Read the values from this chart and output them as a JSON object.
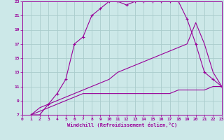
{
  "title": "",
  "xlabel": "Windchill (Refroidissement éolien,°C)",
  "bg_color": "#cce8e8",
  "grid_color": "#aacccc",
  "line_color": "#990099",
  "xlim": [
    0,
    23
  ],
  "ylim": [
    7,
    23
  ],
  "xticks": [
    0,
    1,
    2,
    3,
    4,
    5,
    6,
    7,
    8,
    9,
    10,
    11,
    12,
    13,
    14,
    15,
    16,
    17,
    18,
    19,
    20,
    21,
    22,
    23
  ],
  "yticks": [
    7,
    9,
    11,
    13,
    15,
    17,
    19,
    21,
    23
  ],
  "line1_x": [
    1,
    2,
    3,
    4,
    5,
    6,
    7,
    8,
    9,
    10,
    11,
    12,
    13,
    14,
    15,
    16,
    17,
    18,
    19,
    20,
    21,
    22,
    23
  ],
  "line1_y": [
    7,
    7,
    8.5,
    10,
    12,
    17,
    18,
    21,
    22,
    23,
    23,
    22.5,
    23,
    23,
    23,
    23,
    23,
    23,
    20.5,
    17,
    13,
    12,
    11
  ],
  "line2_x": [
    1,
    2,
    3,
    4,
    5,
    6,
    7,
    8,
    9,
    10,
    11,
    12,
    13,
    14,
    15,
    16,
    17,
    18,
    19,
    20,
    21,
    22,
    23
  ],
  "line2_y": [
    7,
    8,
    8.5,
    9,
    9.5,
    10,
    10.5,
    11,
    11.5,
    12,
    13,
    13.5,
    14,
    14.5,
    15,
    15.5,
    16,
    16.5,
    17,
    20,
    17,
    13,
    11
  ],
  "line3_x": [
    1,
    2,
    3,
    4,
    5,
    6,
    7,
    8,
    9,
    10,
    11,
    12,
    13,
    14,
    15,
    16,
    17,
    18,
    19,
    20,
    21,
    22,
    23
  ],
  "line3_y": [
    7,
    7.5,
    8,
    8.5,
    9,
    9.5,
    10,
    10,
    10,
    10,
    10,
    10,
    10,
    10,
    10,
    10,
    10,
    10.5,
    10.5,
    10.5,
    10.5,
    11,
    11
  ]
}
